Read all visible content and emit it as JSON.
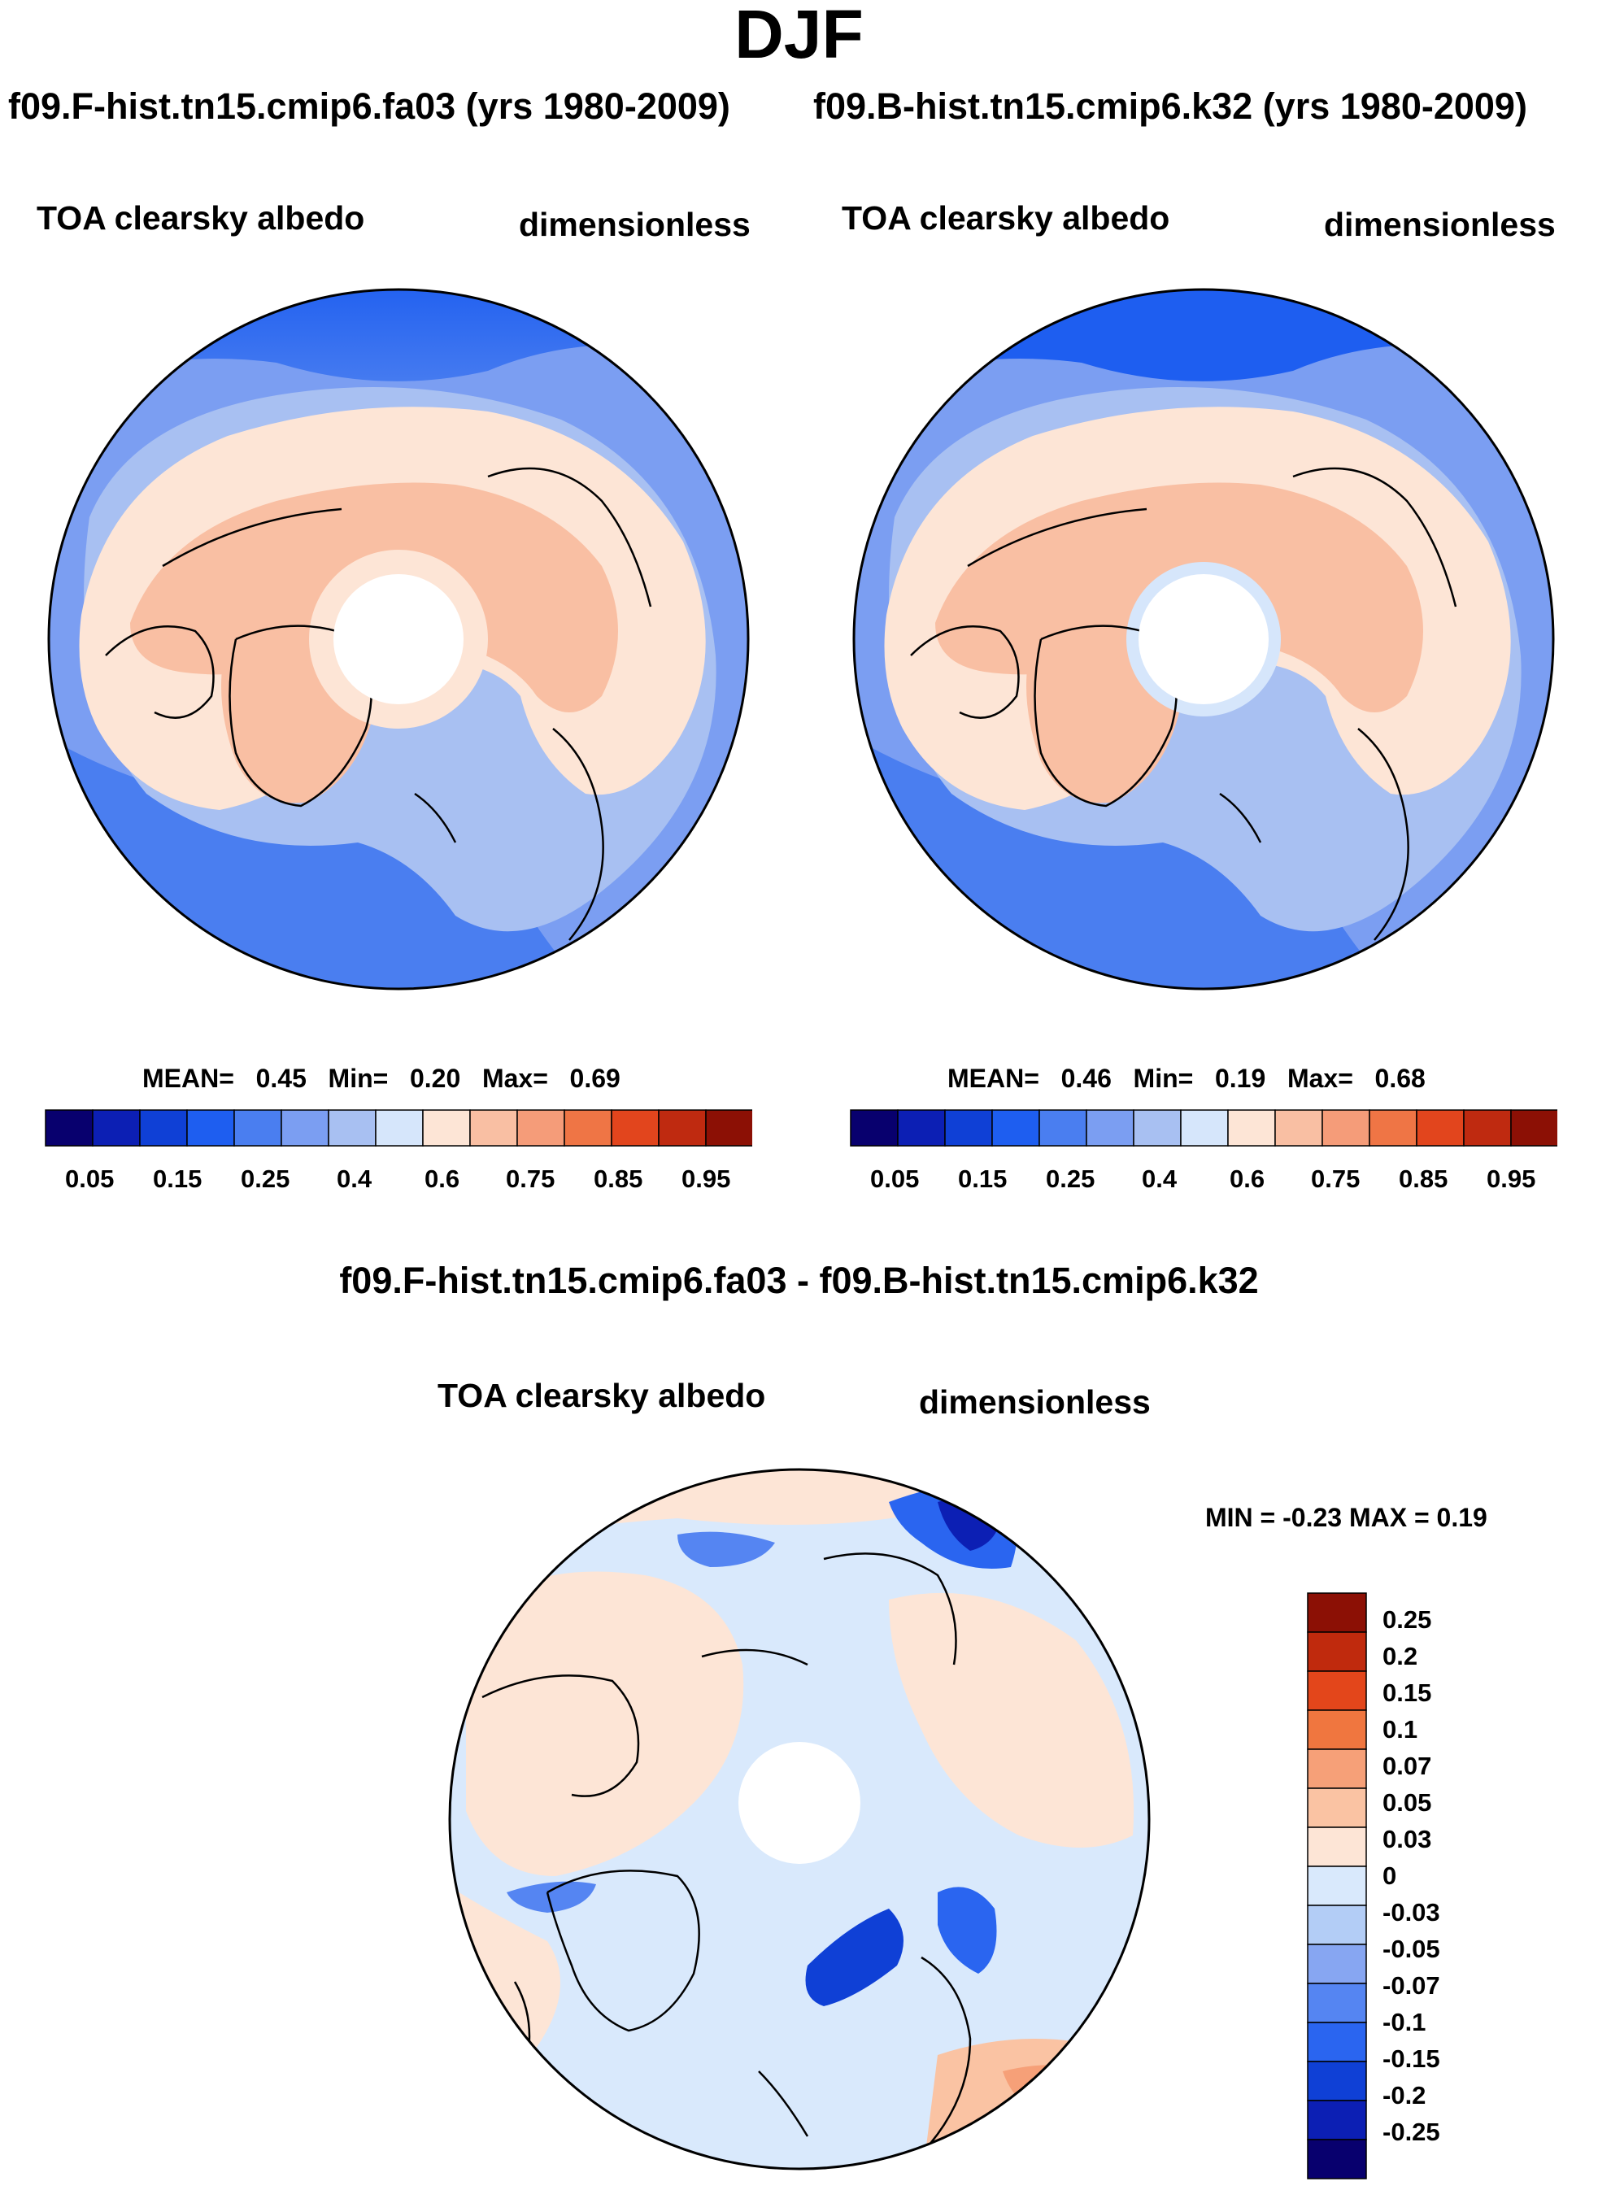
{
  "page": {
    "season": "DJF",
    "diff_title": "f09.F-hist.tn15.cmip6.fa03 - f09.B-hist.tn15.cmip6.k32"
  },
  "palette": {
    "absolute": [
      "#08006e",
      "#0c1fb4",
      "#0f40d6",
      "#1e5ef0",
      "#4a7ef0",
      "#7b9ef2",
      "#a8c0f2",
      "#d6e6fb",
      "#fde5d6",
      "#f9bfa3",
      "#f59c79",
      "#ef7545",
      "#e2451d",
      "#bf2a10",
      "#8c1005"
    ],
    "difference": [
      "#08006e",
      "#0c1fb4",
      "#0f40d6",
      "#2a65f0",
      "#5585f2",
      "#87a6f2",
      "#b3cdf6",
      "#d9e9fc",
      "#fde5d6",
      "#fac3a3",
      "#f6a078",
      "#f0763f",
      "#e3461b",
      "#c02a0d",
      "#8c1005"
    ],
    "land_outline": "#000000",
    "background": "#ffffff"
  },
  "chart_data": [
    {
      "type": "heatmap",
      "projection": "north polar stereographic",
      "header": "f09.F-hist.tn15.cmip6.fa03 (yrs 1980-2009)",
      "variable": "TOA clearsky albedo",
      "units": "dimensionless",
      "stats": {
        "mean_label": "MEAN=",
        "mean": "0.45",
        "min_label": "Min=",
        "min": "0.20",
        "max_label": "Max=",
        "max": "0.69"
      },
      "colorbar": {
        "orientation": "horizontal",
        "levels": [
          0.05,
          0.1,
          0.15,
          0.2,
          0.25,
          0.3,
          0.4,
          0.5,
          0.6,
          0.65,
          0.75,
          0.8,
          0.85,
          0.9
        ],
        "tick_labels": [
          "0.05",
          "0.15",
          "0.25",
          "0.4",
          "0.6",
          "0.75",
          "0.85",
          "0.95"
        ]
      }
    },
    {
      "type": "heatmap",
      "projection": "north polar stereographic",
      "header": "f09.B-hist.tn15.cmip6.k32 (yrs 1980-2009)",
      "variable": "TOA clearsky albedo",
      "units": "dimensionless",
      "stats": {
        "mean_label": "MEAN=",
        "mean": "0.46",
        "min_label": "Min=",
        "min": "0.19",
        "max_label": "Max=",
        "max": "0.68"
      },
      "colorbar": {
        "orientation": "horizontal",
        "levels": [
          0.05,
          0.1,
          0.15,
          0.2,
          0.25,
          0.3,
          0.4,
          0.5,
          0.6,
          0.65,
          0.75,
          0.8,
          0.85,
          0.9
        ],
        "tick_labels": [
          "0.05",
          "0.15",
          "0.25",
          "0.4",
          "0.6",
          "0.75",
          "0.85",
          "0.95"
        ]
      }
    },
    {
      "type": "heatmap",
      "projection": "north polar stereographic",
      "variable": "TOA clearsky albedo",
      "units": "dimensionless",
      "stats": {
        "text": "MIN =  -0.23 MAX =   0.19",
        "min": -0.23,
        "max": 0.19
      },
      "colorbar": {
        "orientation": "vertical",
        "tick_labels": [
          "0.25",
          "0.2",
          "0.15",
          "0.1",
          "0.07",
          "0.05",
          "0.03",
          "0",
          "-0.03",
          "-0.05",
          "-0.07",
          "-0.1",
          "-0.15",
          "-0.2",
          "-0.25"
        ]
      }
    }
  ]
}
